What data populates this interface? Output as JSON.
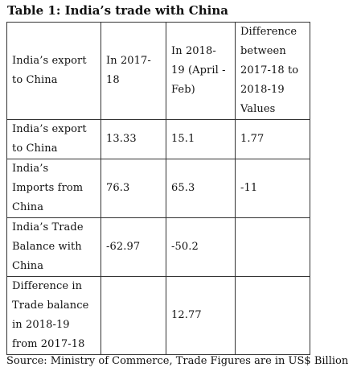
{
  "title": "Table 1: India’s trade with China",
  "table": {
    "headers": [
      "India’s export\nto China",
      "In 2017-\n18",
      "In 2018-\n19 (April -\nFeb)",
      "Difference\nbetween\n2017-18 to\n2018-19\nValues"
    ],
    "rows": [
      [
        "India’s export\nto China",
        "13.33",
        "15.1",
        "1.77"
      ],
      [
        "India’s\nImports from\nChina",
        "76.3",
        "65.3",
        "-11"
      ],
      [
        "India’s Trade\nBalance with\nChina",
        "-62.97",
        "-50.2",
        ""
      ],
      [
        "Difference in\nTrade balance\nin 2018-19\nfrom 2017-18",
        "",
        "12.77",
        ""
      ]
    ]
  },
  "source": "Source: Ministry of Commerce, Trade Figures are in US$ Billion"
}
